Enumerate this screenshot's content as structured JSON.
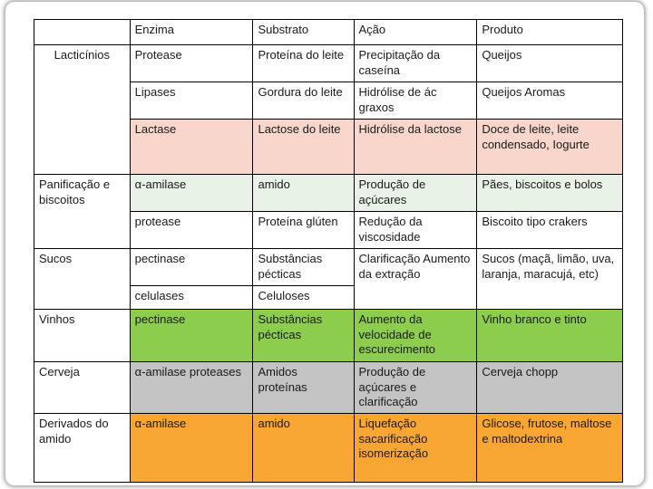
{
  "table": {
    "headers": [
      "Enzima",
      "Substrato",
      "Ação",
      "Produto"
    ],
    "sectors": {
      "laticinios": "Lacticínios",
      "panificacao": "Panificação e biscoitos",
      "sucos": "Sucos",
      "vinhos": "Vinhos",
      "cerveja": "Cerveja",
      "amido": "Derivados do amido"
    },
    "rows": {
      "protease": {
        "enzima": "Protease",
        "substrato": "Proteína do leite",
        "acao": "Precipitação da caseína",
        "produto": "Queijos"
      },
      "lipases": {
        "enzima": "Lipases",
        "substrato": "Gordura do leite",
        "acao": "Hidrólise de ác graxos",
        "produto": "Queijos Aromas"
      },
      "lactase": {
        "enzima": "Lactase",
        "substrato": "Lactose do leite",
        "acao": "Hidrólise da lactose",
        "produto": "Doce de leite, leite condensado, Iogurte"
      },
      "amilase_pan": {
        "enzima": "α-amilase",
        "substrato": "amido",
        "acao": "Produção de açúcares",
        "produto": "Pães, biscoitos e bolos"
      },
      "protease_pan": {
        "enzima": "protease",
        "substrato": "Proteína glúten",
        "acao": "Redução da viscosidade",
        "produto": "Biscoito tipo crakers"
      },
      "pectinase_sucos": {
        "enzima": "pectinase",
        "substrato": "Substâncias pécticas",
        "acao": "Clarificação Aumento da extração",
        "produto": "Sucos (maçã, limão, uva, laranja, maracujá, etc)"
      },
      "celulases": {
        "enzima": "celulases",
        "substrato": "Celuloses"
      },
      "pectinase_vinhos": {
        "enzima": "pectinase",
        "substrato": "Substâncias pécticas",
        "acao": "Aumento da velocidade de escurecimento",
        "produto": "Vinho branco e tinto"
      },
      "cerveja": {
        "enzima": "α-amilase proteases",
        "substrato": "Amidos proteínas",
        "acao": "Produção de açúcares e clarificação",
        "produto": "Cerveja chopp"
      },
      "amido": {
        "enzima": "α-amilase",
        "substrato": "amido",
        "acao": "Liquefação sacarificação isomerização",
        "produto": "Glicose, frutose, maltose e maltodextrina"
      }
    }
  },
  "colors": {
    "pink": "#f8d6cc",
    "mint": "#e8f2e6",
    "green": "#8ccd4e",
    "gray": "#c3c3c3",
    "orange": "#f7a634"
  }
}
